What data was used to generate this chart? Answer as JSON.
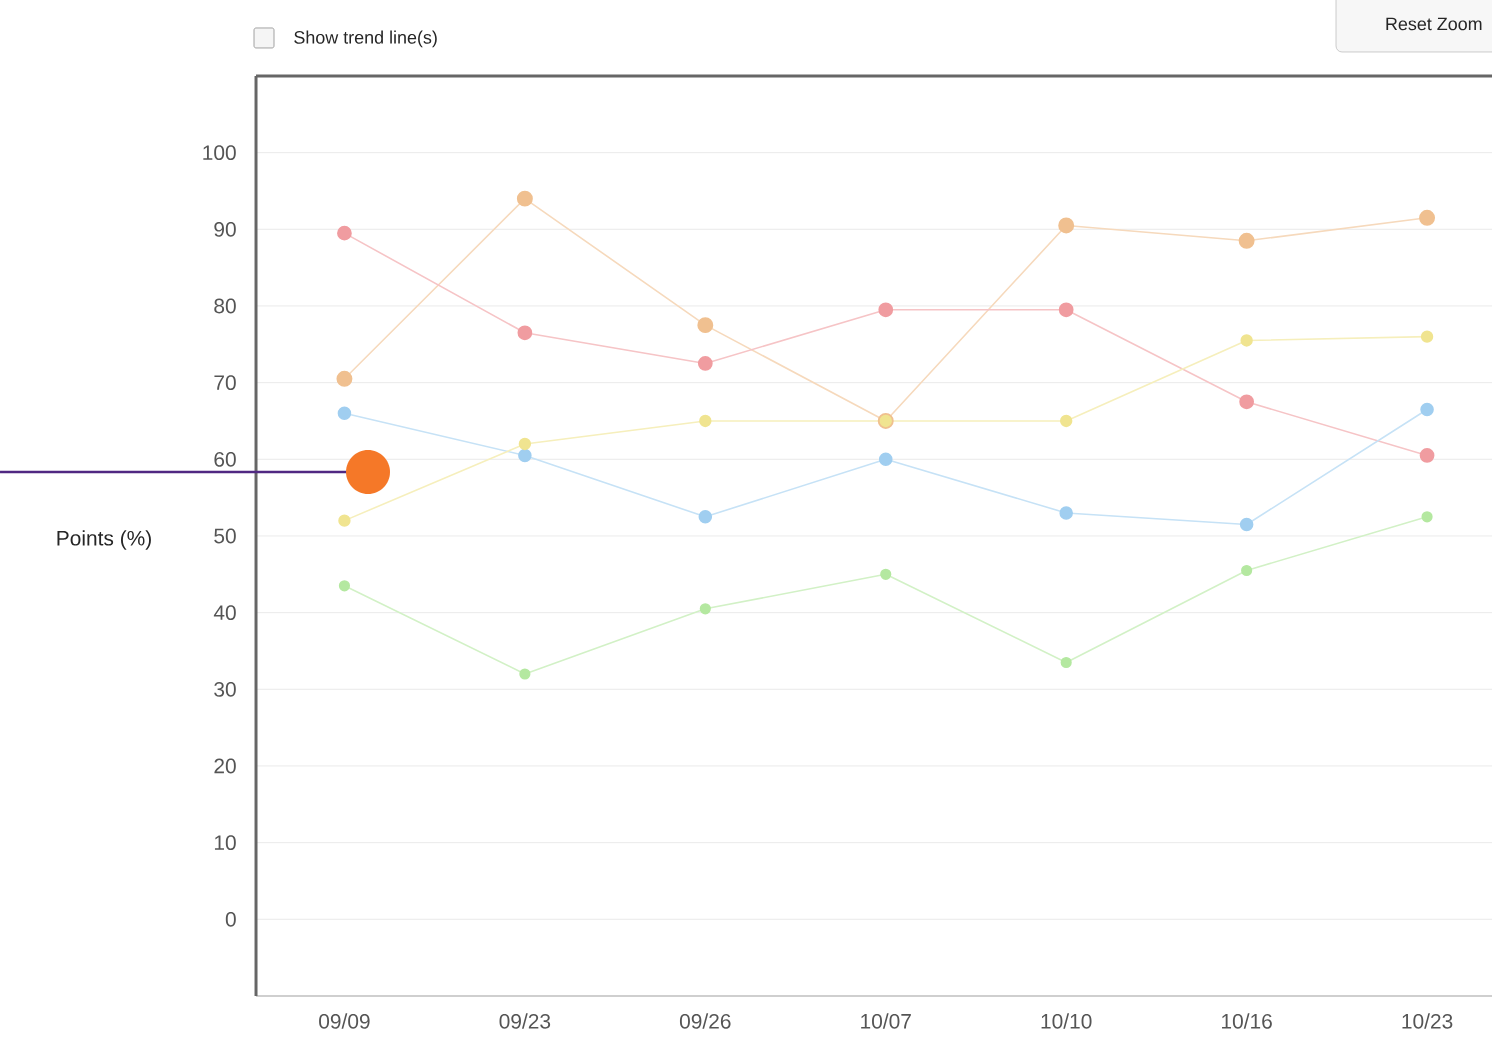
{
  "chart_data": {
    "type": "line",
    "ylabel": "Points (%)",
    "categories": [
      "09/09",
      "09/23",
      "09/26",
      "10/07",
      "10/10",
      "10/16",
      "10/23"
    ],
    "series": [
      {
        "color": "#f0c090",
        "values": [
          70.5,
          94,
          77.5,
          65,
          90.5,
          88.5,
          91.5
        ]
      },
      {
        "color": "#f09ca0",
        "values": [
          89.5,
          76.5,
          72.5,
          79.5,
          79.5,
          67.5,
          60.5
        ]
      },
      {
        "color": "#a0cef0",
        "values": [
          66,
          60.5,
          52.5,
          60,
          53,
          51.5,
          66.5
        ]
      },
      {
        "color": "#f0e490",
        "values": [
          52,
          62,
          65,
          65,
          65,
          75.5,
          76
        ]
      },
      {
        "color": "#b4e8a0",
        "values": [
          43.5,
          32,
          40.5,
          45,
          33.5,
          45.5,
          52.5
        ]
      }
    ],
    "ylim": [
      -10,
      110
    ],
    "yticks": [
      0,
      10,
      20,
      30,
      40,
      50,
      60,
      70,
      80,
      90,
      100
    ],
    "grid": "y",
    "marker": "circle",
    "annotations": [
      "Show trend line(s)",
      "Reset Zoom"
    ]
  }
}
